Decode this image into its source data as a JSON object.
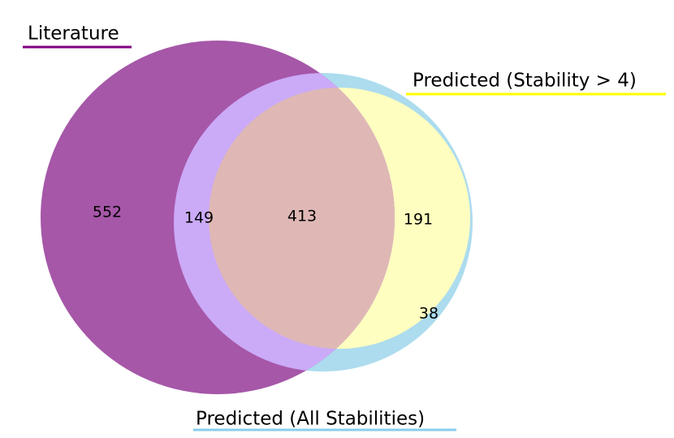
{
  "chart_data": {
    "type": "venn",
    "sets": [
      {
        "name": "Literature",
        "color": "#800080"
      },
      {
        "name": "Predicted (All Stabilities)",
        "color": "#87ceeb"
      },
      {
        "name": "Predicted (Stability > 4)",
        "color": "#ffff00"
      }
    ],
    "values": [
      552,
      149,
      413,
      191,
      38
    ]
  }
}
